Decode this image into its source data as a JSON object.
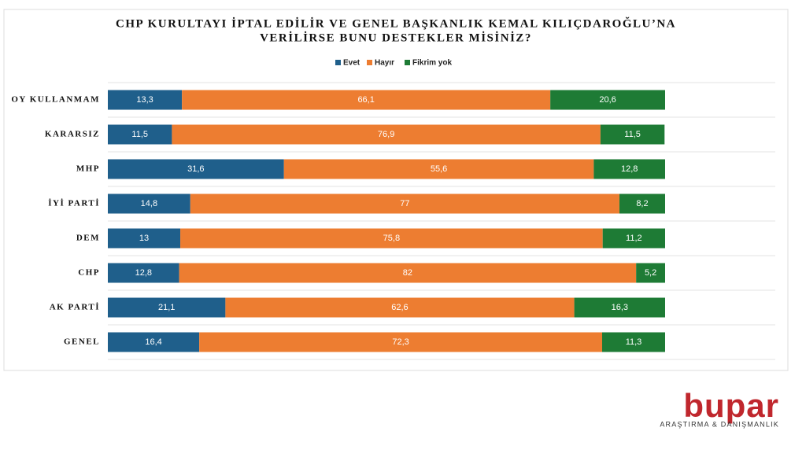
{
  "chart_data": {
    "type": "stacked-barh",
    "title": [
      "CHP KURULTAYI İPTAL EDİLİR VE GENEL BAŞKANLIK KEMAL KILIÇDAROĞLU’NA",
      "VERİLİRSE BUNU  DESTEKLER MİSİNİZ?"
    ],
    "categories": [
      "OY KULLANMAM",
      "KARARSIZ",
      "MHP",
      "İYİ PARTİ",
      "DEM",
      "CHP",
      "AK PARTİ",
      "GENEL"
    ],
    "series": [
      {
        "name": "Evet",
        "color": "#1f5f8b",
        "values": [
          13.3,
          11.5,
          31.6,
          14.8,
          13,
          12.8,
          21.1,
          16.4
        ],
        "value_labels": [
          "13,3",
          "11,5",
          "31,6",
          "14,8",
          "13",
          "12,8",
          "21,1",
          "16,4"
        ]
      },
      {
        "name": "Hayır",
        "color": "#ed7d31",
        "values": [
          66.1,
          76.9,
          55.6,
          77,
          75.8,
          82,
          62.6,
          72.3
        ],
        "value_labels": [
          "66,1",
          "76,9",
          "55,6",
          "77",
          "75,8",
          "82",
          "62,6",
          "72,3"
        ]
      },
      {
        "name": "Fikrim yok",
        "color": "#1e7b35",
        "values": [
          20.6,
          11.5,
          12.8,
          8.2,
          11.2,
          5.2,
          16.3,
          11.3
        ],
        "value_labels": [
          "20,6",
          "11,5",
          "12,8",
          "8,2",
          "11,2",
          "5,2",
          "16,3",
          "11,3"
        ]
      }
    ],
    "xlim": [
      0,
      100
    ],
    "legend": "top"
  },
  "logo": {
    "name": "bupar",
    "tagline": "ARAŞTIRMA & DANIŞMANLIK"
  }
}
